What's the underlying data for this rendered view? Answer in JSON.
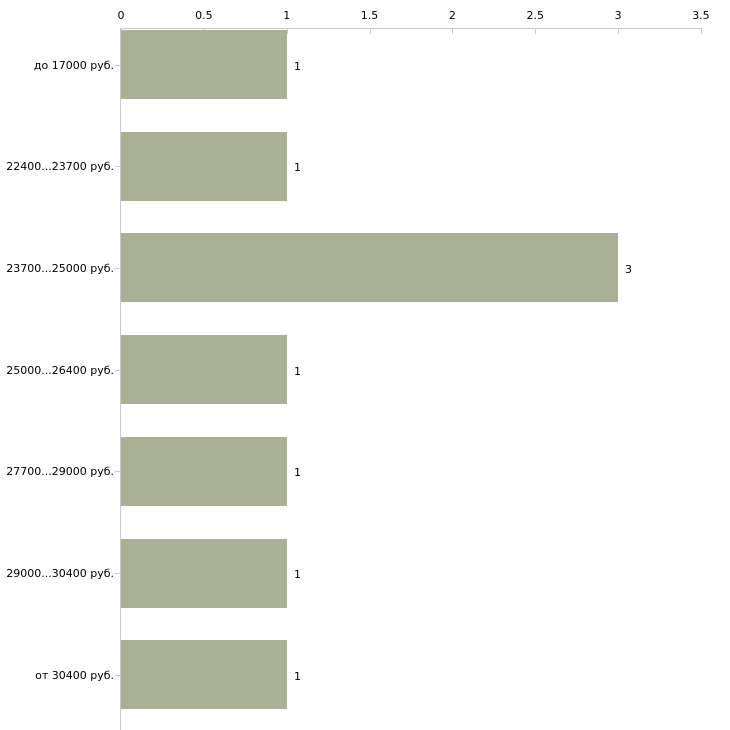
{
  "chart_data": {
    "type": "bar",
    "orientation": "horizontal",
    "title": "",
    "xlabel": "",
    "ylabel": "",
    "categories": [
      "до 17000 руб.",
      "22400...23700 руб.",
      "23700...25000 руб.",
      "25000...26400 руб.",
      "27700...29000 руб.",
      "29000...30400 руб.",
      "от 30400 руб."
    ],
    "values": [
      1,
      1,
      3,
      1,
      1,
      1,
      1
    ],
    "value_labels": [
      "1",
      "1",
      "3",
      "1",
      "1",
      "1",
      "1"
    ],
    "x_axis_position": "top",
    "x_ticks": [
      0,
      0.5,
      1,
      1.5,
      2,
      2.5,
      3,
      3.5
    ],
    "x_tick_labels": [
      "0",
      "0.5",
      "1",
      "1.5",
      "2",
      "2.5",
      "3",
      "3.5"
    ],
    "xlim": [
      0,
      3.5
    ],
    "grid": false,
    "legend": null,
    "colors": {
      "bar_fill": "#aab094",
      "axis_line": "#c8c8c8",
      "tick_mark": "#ccd1b6",
      "text": "#000000",
      "background": "#ffffff"
    }
  }
}
